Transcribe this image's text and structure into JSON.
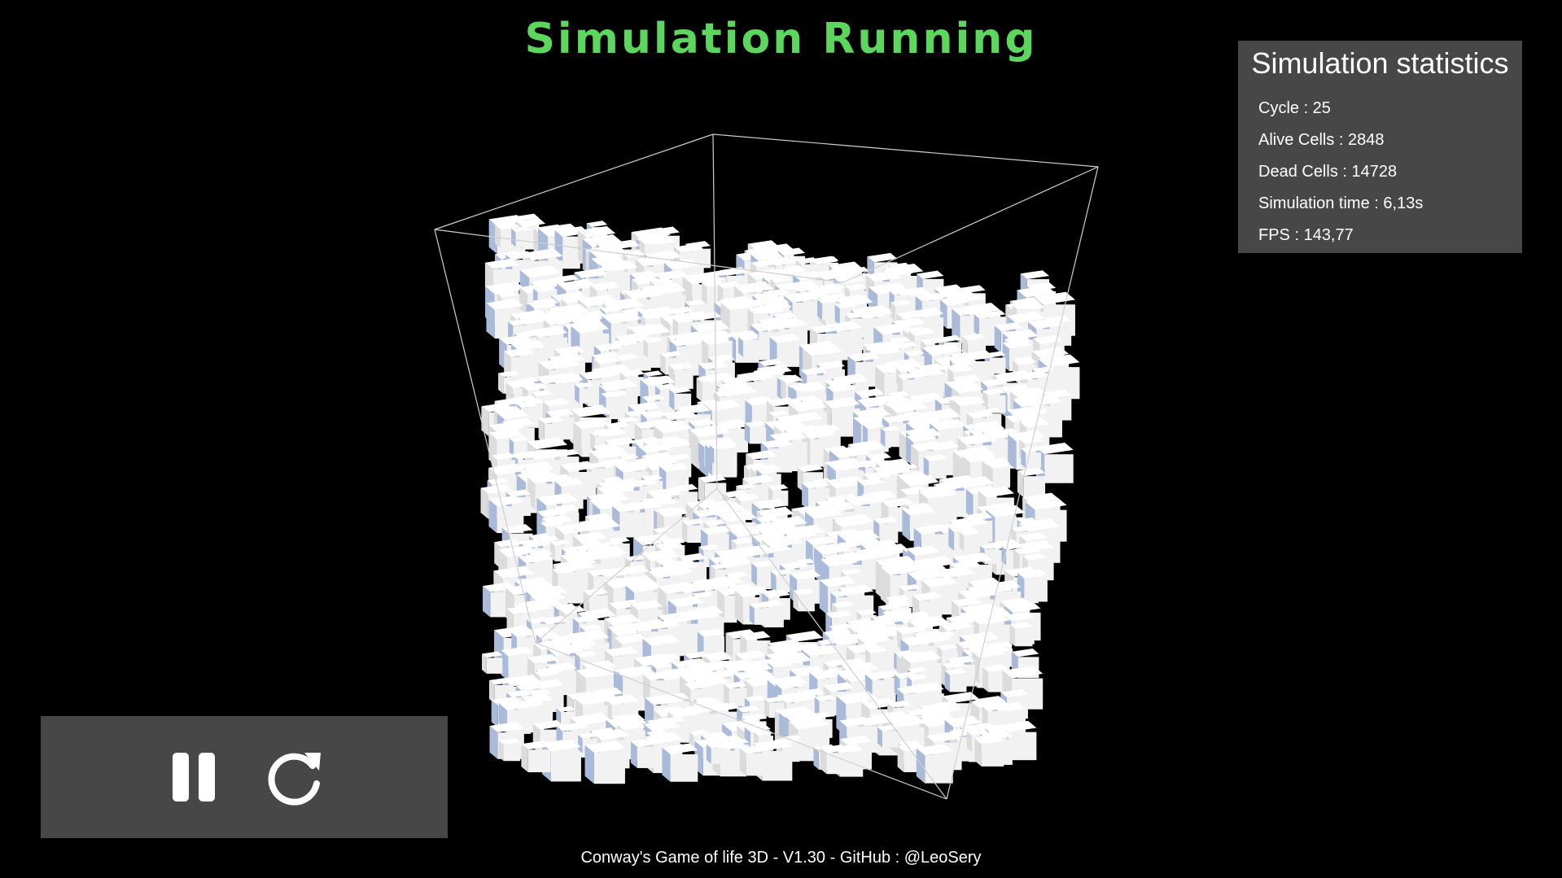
{
  "header": {
    "status": "Simulation Running",
    "status_color": "#5cd65c"
  },
  "stats": {
    "title": "Simulation statistics",
    "rows": [
      "Cycle : 25",
      "Alive Cells : 2848",
      "Dead Cells : 14728",
      "Simulation time : 6,13s",
      "FPS : 143,77"
    ]
  },
  "controls": {
    "pause_icon": "pause-icon",
    "restart_icon": "restart-icon"
  },
  "footer": {
    "text": "Conway's Game of life 3D - V1.30 - GitHub : @LeoSery"
  },
  "colors": {
    "background": "#000000",
    "panel": "#474747",
    "cell": "#f2f2f2",
    "cell_shadow": "#a9bbd8"
  }
}
